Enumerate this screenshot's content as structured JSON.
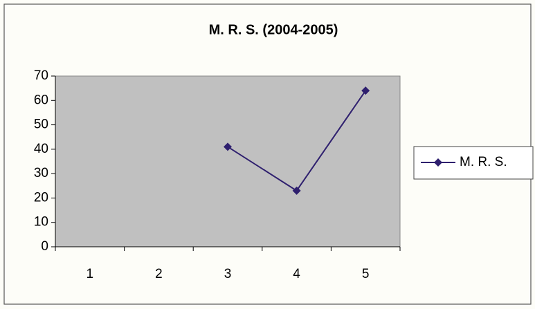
{
  "chart_data": {
    "type": "line",
    "title": "M. R. S. (2004-2005)",
    "categories": [
      "1",
      "2",
      "3",
      "4",
      "5"
    ],
    "series": [
      {
        "name": "M. R. S.",
        "color": "#2e1f6e",
        "values": [
          null,
          null,
          41,
          23,
          64
        ]
      }
    ],
    "ylim": [
      0,
      70
    ],
    "yticks": [
      0,
      10,
      20,
      30,
      40,
      50,
      60,
      70
    ],
    "grid": false,
    "legend": "right",
    "plot_background": "#c0c0c0"
  }
}
